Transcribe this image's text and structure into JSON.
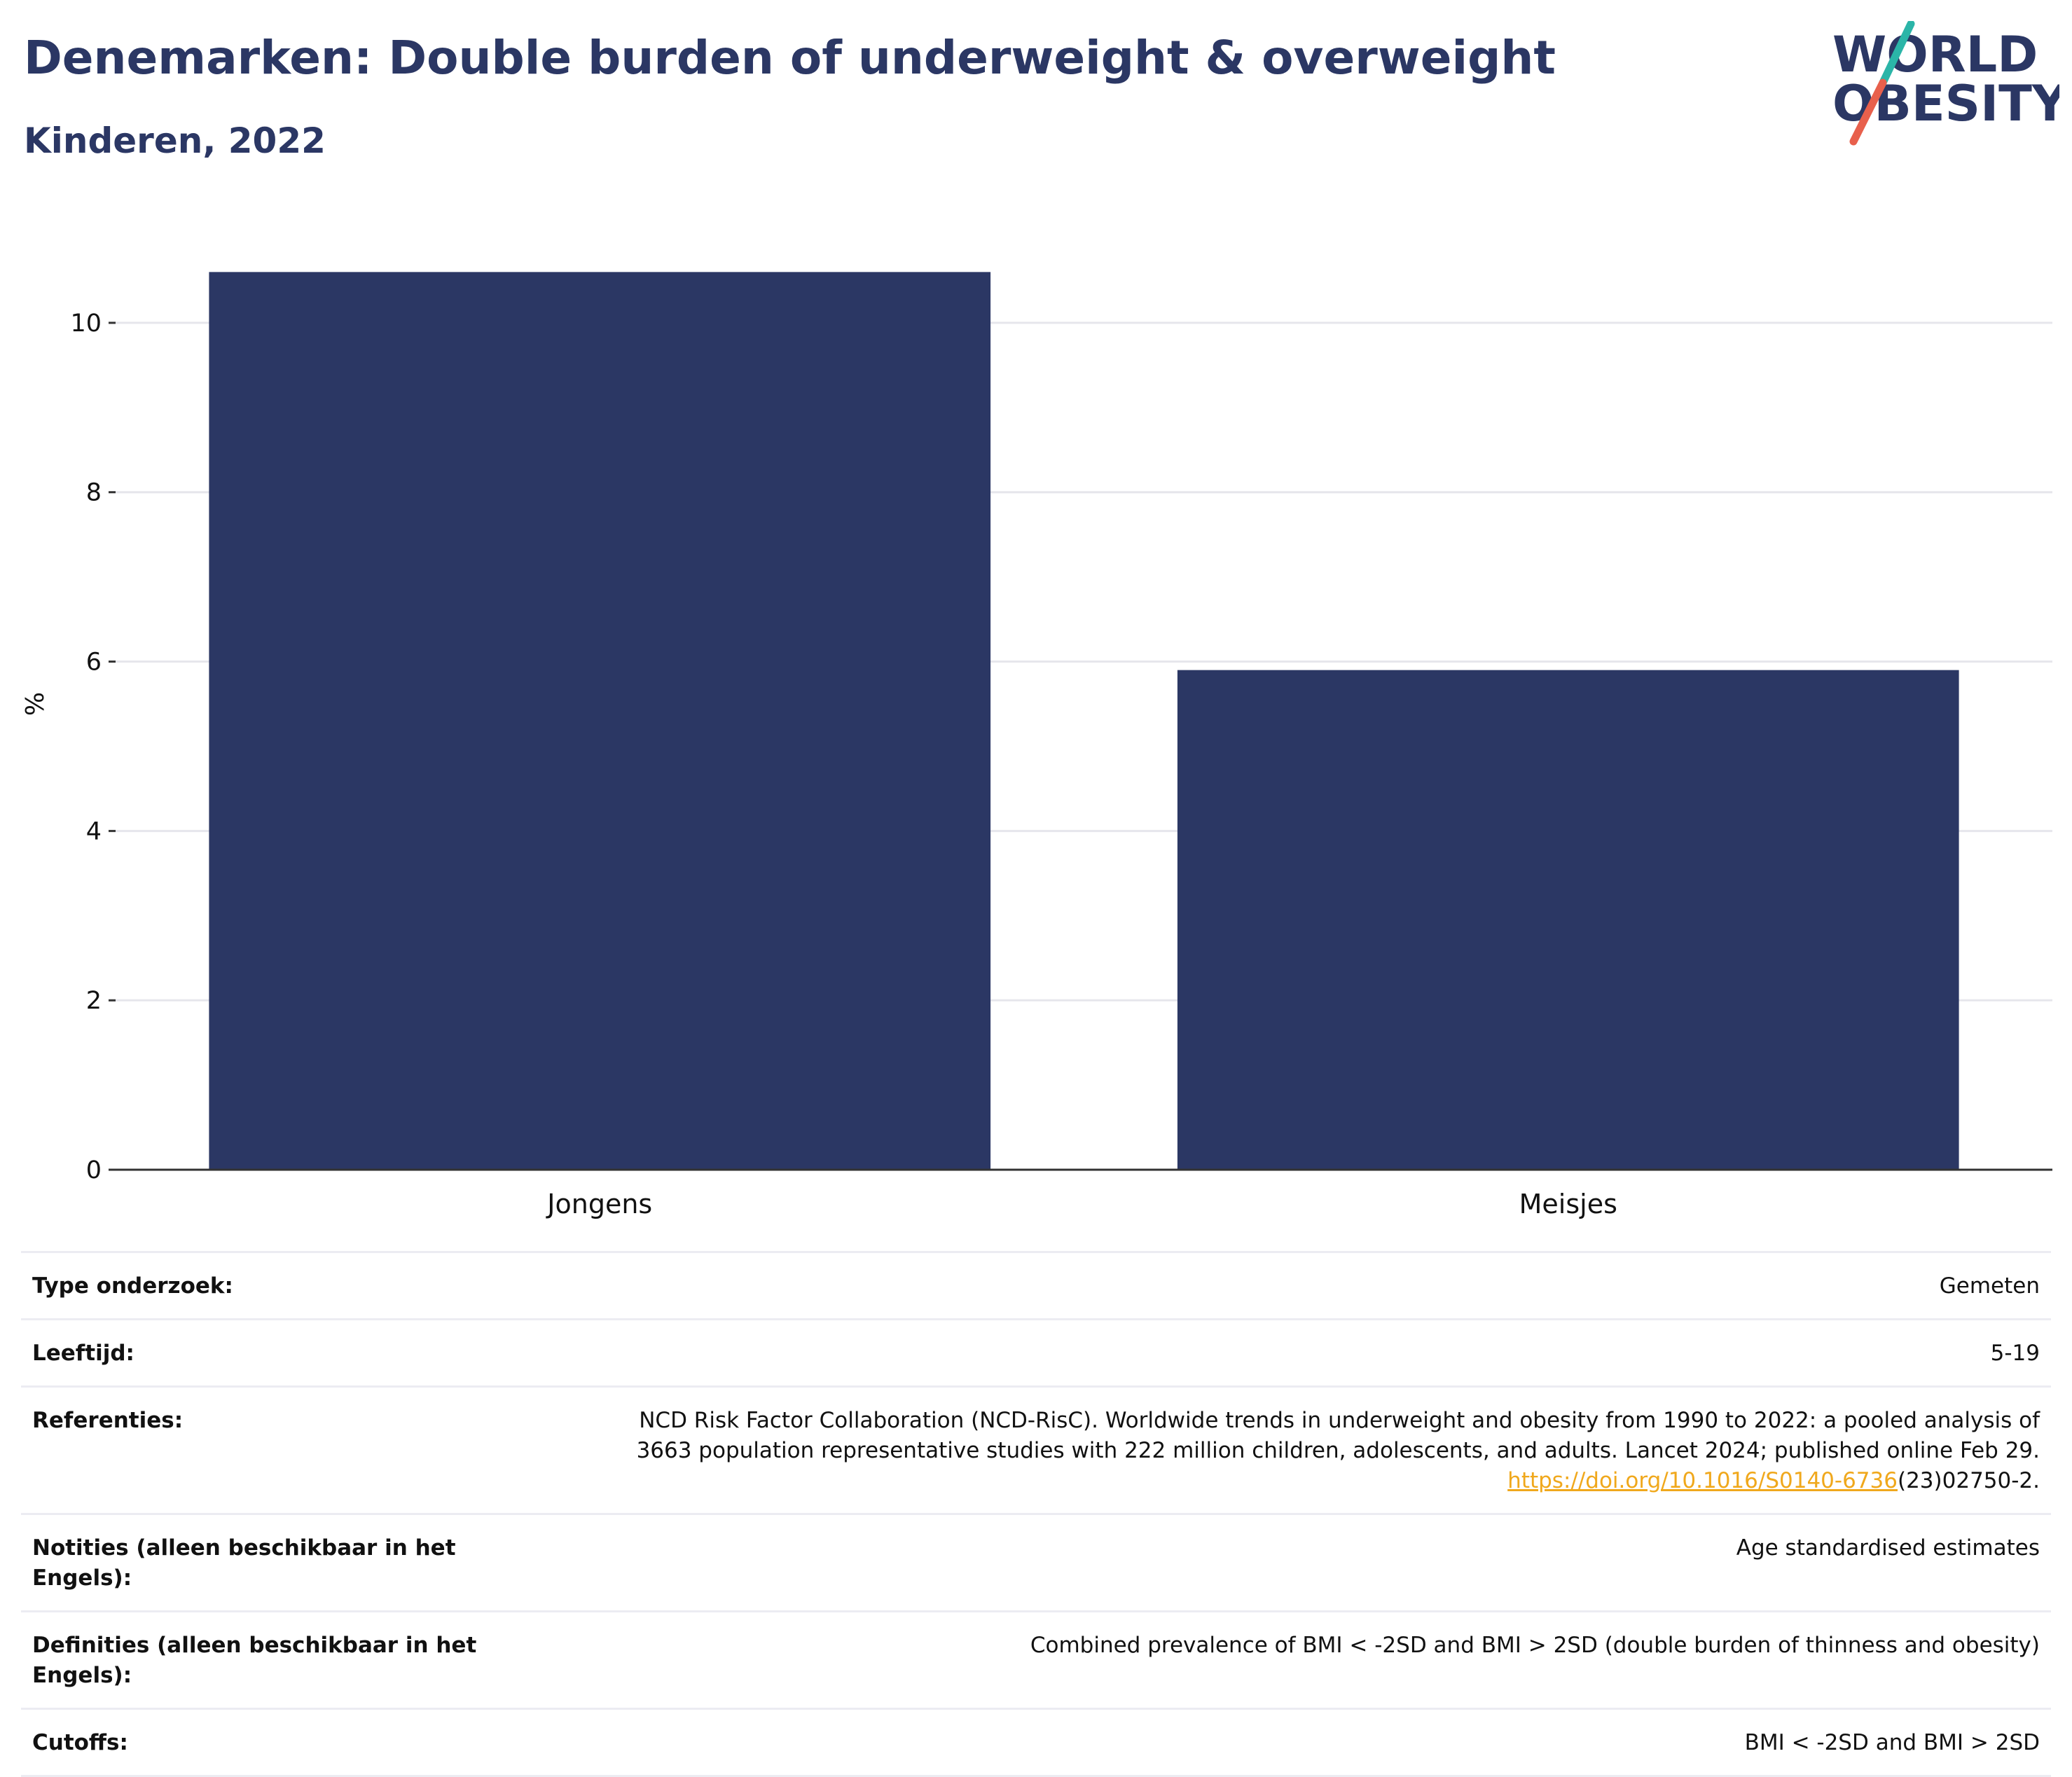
{
  "header": {
    "title": "Denemarken: Double burden of underweight & overweight",
    "subtitle": "Kinderen, 2022"
  },
  "logo": {
    "line1": "WORLD",
    "line2": "OBESITY",
    "colors": {
      "text": "#2b3764",
      "slash_top": "#2bb5a8",
      "slash_bottom": "#e8604c"
    }
  },
  "chart_data": {
    "type": "bar",
    "categories": [
      "Jongens",
      "Meisjes"
    ],
    "values": [
      10.6,
      5.9
    ],
    "title": "",
    "xlabel": "",
    "ylabel": "%",
    "ylim": [
      0,
      11
    ],
    "yticks": [
      0,
      2,
      4,
      6,
      8,
      10
    ],
    "grid": true,
    "bar_color": "#2b3764"
  },
  "info": {
    "type": {
      "label": "Type onderzoek:",
      "value": "Gemeten"
    },
    "age": {
      "label": "Leeftijd:",
      "value": "5-19"
    },
    "references": {
      "label": "Referenties:",
      "line1": "NCD Risk Factor Collaboration (NCD-RisC). Worldwide trends in underweight and obesity from 1990 to 2022: a pooled analysis of",
      "line2": "3663 population representative studies with 222 million children, adolescents, and adults. Lancet 2024; published online Feb 29.",
      "link_text": "https://doi.org/10.1016/S0140-6736",
      "link_suffix": "(23)02750-2."
    },
    "notes": {
      "label": "Notities (alleen beschikbaar in het Engels):",
      "value": "Age standardised estimates"
    },
    "definitions": {
      "label": "Definities (alleen beschikbaar in het Engels):",
      "value": "Combined prevalence of BMI < -2SD and BMI > 2SD (double burden of thinness and obesity)"
    },
    "cutoffs": {
      "label": "Cutoffs:",
      "value": "BMI < -2SD and BMI > 2SD"
    }
  }
}
